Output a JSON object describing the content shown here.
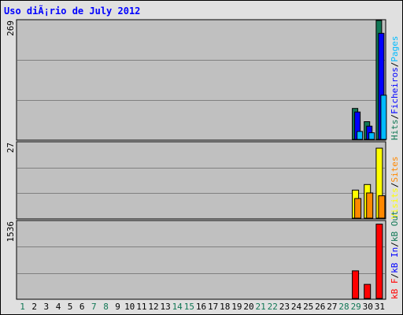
{
  "title": "Uso diÃ¡rio de July 2012",
  "colors": {
    "hits": "#117755",
    "files": "#0000ff",
    "pages": "#00bbff",
    "visits": "#ffff00",
    "sites": "#ff8800",
    "kb_f": "#ff0000",
    "kb_in": "#0000ff",
    "kb_out": "#117755",
    "weekend_day": "#117755",
    "weekday": "#000000",
    "panel_bg": "#c0c0c0",
    "grid": "#808080"
  },
  "chart_data": [
    {
      "type": "bar",
      "panel": "hits-files-pages",
      "max_label": "269",
      "ymax": 269,
      "legend": [
        {
          "label": "Hits",
          "color": "#117755"
        },
        {
          "label": "/",
          "color": "#000000"
        },
        {
          "label": "Ficheiros",
          "color": "#0000ff"
        },
        {
          "label": "/",
          "color": "#000000"
        },
        {
          "label": "Pages",
          "color": "#00bbff"
        }
      ],
      "days": [
        1,
        2,
        3,
        4,
        5,
        6,
        7,
        8,
        9,
        10,
        11,
        12,
        13,
        14,
        15,
        16,
        17,
        18,
        19,
        20,
        21,
        22,
        23,
        24,
        25,
        26,
        27,
        28,
        29,
        30,
        31
      ],
      "series": [
        {
          "name": "Hits",
          "color": "#117755",
          "values": [
            0,
            0,
            0,
            0,
            0,
            0,
            0,
            0,
            0,
            0,
            0,
            0,
            0,
            0,
            0,
            0,
            0,
            0,
            0,
            0,
            0,
            0,
            0,
            0,
            0,
            0,
            0,
            0,
            70,
            40,
            269
          ]
        },
        {
          "name": "Ficheiros",
          "color": "#0000ff",
          "values": [
            0,
            0,
            0,
            0,
            0,
            0,
            0,
            0,
            0,
            0,
            0,
            0,
            0,
            0,
            0,
            0,
            0,
            0,
            0,
            0,
            0,
            0,
            0,
            0,
            0,
            0,
            0,
            0,
            62,
            30,
            240
          ]
        },
        {
          "name": "Pages",
          "color": "#00bbff",
          "values": [
            0,
            0,
            0,
            0,
            0,
            0,
            0,
            0,
            0,
            0,
            0,
            0,
            0,
            0,
            0,
            0,
            0,
            0,
            0,
            0,
            0,
            0,
            0,
            0,
            0,
            0,
            0,
            0,
            18,
            15,
            100
          ]
        }
      ]
    },
    {
      "type": "bar",
      "panel": "visits-sites",
      "max_label": "27",
      "ymax": 27,
      "legend": [
        {
          "label": "Visits",
          "color": "#ffff00"
        },
        {
          "label": "/",
          "color": "#000000"
        },
        {
          "label": "Sites",
          "color": "#ff8800"
        }
      ],
      "days": [
        1,
        2,
        3,
        4,
        5,
        6,
        7,
        8,
        9,
        10,
        11,
        12,
        13,
        14,
        15,
        16,
        17,
        18,
        19,
        20,
        21,
        22,
        23,
        24,
        25,
        26,
        27,
        28,
        29,
        30,
        31
      ],
      "series": [
        {
          "name": "Visits",
          "color": "#ffff00",
          "values": [
            0,
            0,
            0,
            0,
            0,
            0,
            0,
            0,
            0,
            0,
            0,
            0,
            0,
            0,
            0,
            0,
            0,
            0,
            0,
            0,
            0,
            0,
            0,
            0,
            0,
            0,
            0,
            0,
            10,
            12,
            25
          ]
        },
        {
          "name": "Sites",
          "color": "#ff8800",
          "values": [
            0,
            0,
            0,
            0,
            0,
            0,
            0,
            0,
            0,
            0,
            0,
            0,
            0,
            0,
            0,
            0,
            0,
            0,
            0,
            0,
            0,
            0,
            0,
            0,
            0,
            0,
            0,
            0,
            7,
            9,
            8
          ]
        }
      ]
    },
    {
      "type": "bar",
      "panel": "kbytes",
      "max_label": "1536",
      "ymax": 1536,
      "legend": [
        {
          "label": "kB F",
          "color": "#ff0000"
        },
        {
          "label": "/",
          "color": "#000000"
        },
        {
          "label": "kB In",
          "color": "#0000ff"
        },
        {
          "label": "/",
          "color": "#000000"
        },
        {
          "label": "kB Out",
          "color": "#117755"
        }
      ],
      "days": [
        1,
        2,
        3,
        4,
        5,
        6,
        7,
        8,
        9,
        10,
        11,
        12,
        13,
        14,
        15,
        16,
        17,
        18,
        19,
        20,
        21,
        22,
        23,
        24,
        25,
        26,
        27,
        28,
        29,
        30,
        31
      ],
      "series": [
        {
          "name": "kB F",
          "color": "#ff0000",
          "values": [
            0,
            0,
            0,
            0,
            0,
            0,
            0,
            0,
            0,
            0,
            0,
            0,
            0,
            0,
            0,
            0,
            0,
            0,
            0,
            0,
            0,
            0,
            0,
            0,
            0,
            0,
            0,
            0,
            550,
            280,
            1480
          ]
        }
      ]
    }
  ],
  "x_axis": {
    "labels": [
      "1",
      "2",
      "3",
      "4",
      "5",
      "6",
      "7",
      "8",
      "9",
      "10",
      "11",
      "12",
      "13",
      "14",
      "15",
      "16",
      "17",
      "18",
      "19",
      "20",
      "21",
      "22",
      "23",
      "24",
      "25",
      "26",
      "27",
      "28",
      "29",
      "30",
      "31"
    ],
    "weekend_days": [
      1,
      7,
      8,
      14,
      15,
      21,
      22,
      28,
      29
    ]
  }
}
